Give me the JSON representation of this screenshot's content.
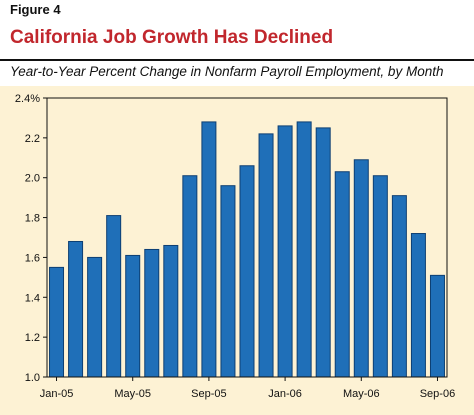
{
  "header": {
    "figure_label": "Figure 4",
    "title": "California Job Growth Has Declined",
    "subtitle": "Year-to-Year Percent Change in Nonfarm Payroll Employment, by Month"
  },
  "colors": {
    "title": "#c1272d",
    "bar_fill": "#1f6fb8",
    "bar_stroke": "#0d3f73",
    "panel_bg": "#fdf2d4"
  },
  "chart_data": {
    "type": "bar",
    "title": "California Job Growth Has Declined",
    "subtitle": "Year-to-Year Percent Change in Nonfarm Payroll Employment, by Month",
    "categories": [
      "Jan-05",
      "Feb-05",
      "Mar-05",
      "Apr-05",
      "May-05",
      "Jun-05",
      "Jul-05",
      "Aug-05",
      "Sep-05",
      "Oct-05",
      "Nov-05",
      "Dec-05",
      "Jan-06",
      "Feb-06",
      "Mar-06",
      "Apr-06",
      "May-06",
      "Jun-06",
      "Jul-06",
      "Aug-06",
      "Sep-06"
    ],
    "values": [
      1.55,
      1.68,
      1.6,
      1.81,
      1.61,
      1.64,
      1.66,
      2.01,
      2.28,
      1.96,
      2.06,
      2.22,
      2.26,
      2.28,
      2.25,
      2.03,
      2.09,
      2.01,
      1.91,
      1.72,
      1.51
    ],
    "x_tick_labels": [
      "Jan-05",
      "May-05",
      "Sep-05",
      "Jan-06",
      "May-06",
      "Sep-06"
    ],
    "x_tick_indices": [
      0,
      4,
      8,
      12,
      16,
      20
    ],
    "y_ticks": [
      "1.0",
      "1.2",
      "1.4",
      "1.6",
      "1.8",
      "2.0",
      "2.2",
      "2.4%"
    ],
    "ylim": [
      1.0,
      2.4
    ],
    "xlabel": "",
    "ylabel": "",
    "grid": false
  }
}
